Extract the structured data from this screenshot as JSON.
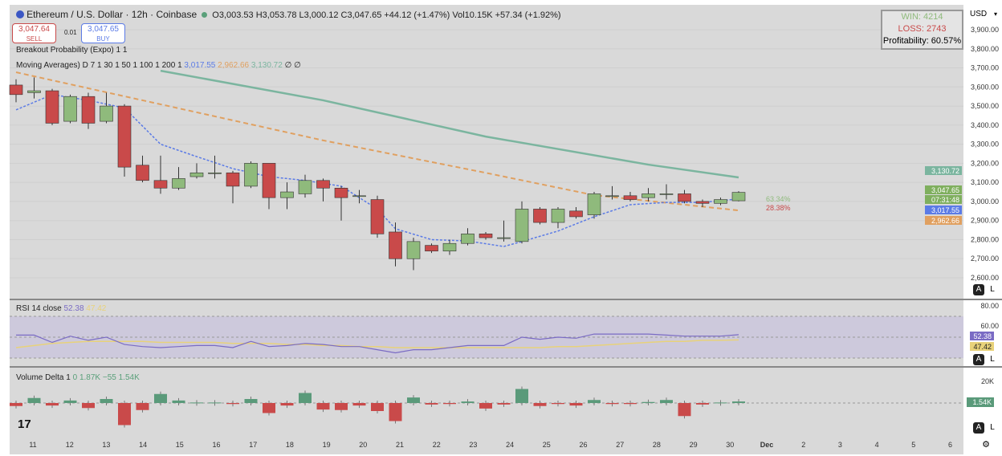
{
  "header": {
    "symbol_title": "Ethereum / U.S. Dollar · 12h · Coinbase",
    "open": "O3,003.53",
    "high": "H3,053.78",
    "low": "L3,000.12",
    "close": "C3,047.65",
    "change": "+44.12 (+1.47%)",
    "volume": "Vol10.15K",
    "vol_change": "+57.34 (+1.92%)"
  },
  "trade": {
    "sell_price": "3,047.64",
    "sell_label": "SELL",
    "spread": "0.01",
    "buy_price": "3,047.65",
    "buy_label": "BUY"
  },
  "indicators": {
    "breakout": "Breakout Probability (Expo) 1 1",
    "ma_label": "Moving Averages) D 7 1 30 1 50 1 100 1 200 1",
    "ma_v1": "3,017.55",
    "ma_v2": "2,962.66",
    "ma_v3": "3,130.72",
    "ma_tail": "∅ ∅"
  },
  "stats": {
    "win": "WIN: 4214",
    "loss": "LOSS: 2743",
    "profitability": "Profitability: 60.57%"
  },
  "breakout_probs": {
    "up": "63.34%",
    "down": "28.38%"
  },
  "currency": "USD",
  "price_axis": [
    "3,900.00",
    "3,800.00",
    "3,700.00",
    "3,600.00",
    "3,500.00",
    "3,400.00",
    "3,300.00",
    "3,200.00",
    "3,100.00",
    "3,000.00",
    "2,900.00",
    "2,800.00",
    "2,700.00",
    "2,600.00"
  ],
  "price_tags": {
    "ma100": "3,130.72",
    "last": "3,047.65",
    "countdown": "07:31:48",
    "ema7": "3,017.55",
    "ma30": "2,962.66"
  },
  "rsi": {
    "label": "RSI 14 close",
    "value": "52.38",
    "ma_value": "47.42",
    "axis": [
      "80.00",
      "60.00"
    ]
  },
  "volume_delta": {
    "label": "Volume Delta 1",
    "values_text": "0 1.87K −55 1.54K",
    "axis": "20K",
    "tag": "1.54K"
  },
  "date_axis": [
    "11",
    "12",
    "13",
    "14",
    "15",
    "16",
    "17",
    "18",
    "19",
    "20",
    "21",
    "22",
    "23",
    "24",
    "25",
    "26",
    "27",
    "28",
    "29",
    "30",
    "Dec",
    "2",
    "3",
    "4",
    "5",
    "6"
  ],
  "scale_buttons": {
    "auto": "A",
    "log": "L"
  },
  "colors": {
    "up": "#8fba7c",
    "down": "#c94a4a",
    "ma100": "#7bb59f",
    "ma30": "#e0a060",
    "ema7": "#5b7be6",
    "rsi": "#7a6bc4",
    "rsi_ma": "#e8d27a"
  },
  "chart_data": {
    "type": "candlestick",
    "candles": [
      [
        3610,
        3640,
        3520,
        3560
      ],
      [
        3570,
        3650,
        3540,
        3580
      ],
      [
        3580,
        3590,
        3400,
        3410
      ],
      [
        3420,
        3560,
        3410,
        3550
      ],
      [
        3550,
        3570,
        3380,
        3410
      ],
      [
        3420,
        3570,
        3410,
        3500
      ],
      [
        3500,
        3510,
        3130,
        3180
      ],
      [
        3190,
        3240,
        3100,
        3110
      ],
      [
        3110,
        3240,
        3040,
        3070
      ],
      [
        3070,
        3180,
        3060,
        3120
      ],
      [
        3130,
        3200,
        3120,
        3150
      ],
      [
        3150,
        3240,
        3120,
        3150
      ],
      [
        3150,
        3160,
        2990,
        3080
      ],
      [
        3080,
        3210,
        3070,
        3200
      ],
      [
        3200,
        3200,
        2960,
        3020
      ],
      [
        3020,
        3100,
        2960,
        3050
      ],
      [
        3040,
        3140,
        3020,
        3110
      ],
      [
        3110,
        3120,
        3000,
        3070
      ],
      [
        3070,
        3080,
        2900,
        3020
      ],
      [
        3030,
        3060,
        2990,
        3030
      ],
      [
        3010,
        3030,
        2810,
        2830
      ],
      [
        2840,
        2890,
        2660,
        2700
      ],
      [
        2700,
        2810,
        2640,
        2790
      ],
      [
        2770,
        2780,
        2730,
        2740
      ],
      [
        2740,
        2800,
        2720,
        2780
      ],
      [
        2780,
        2860,
        2770,
        2830
      ],
      [
        2830,
        2840,
        2800,
        2810
      ],
      [
        2810,
        2900,
        2790,
        2810
      ],
      [
        2790,
        3000,
        2780,
        2960
      ],
      [
        2960,
        2970,
        2880,
        2890
      ],
      [
        2890,
        2970,
        2860,
        2960
      ],
      [
        2950,
        2970,
        2910,
        2920
      ],
      [
        2930,
        3050,
        2910,
        3040
      ],
      [
        3030,
        3080,
        3010,
        3030
      ],
      [
        3030,
        3050,
        3000,
        3010
      ],
      [
        3020,
        3070,
        3000,
        3040
      ],
      [
        3040,
        3090,
        3010,
        3040
      ],
      [
        3040,
        3060,
        2990,
        3000
      ],
      [
        3000,
        3010,
        2970,
        2990
      ],
      [
        2990,
        3020,
        2980,
        3010
      ],
      [
        3003.53,
        3053.78,
        3000.12,
        3047.65
      ]
    ],
    "ma100": [
      [
        8,
        3685
      ],
      [
        17,
        3530
      ],
      [
        26,
        3340
      ],
      [
        35,
        3193
      ],
      [
        40,
        3126
      ]
    ],
    "ma30": [
      [
        0,
        3677
      ],
      [
        8,
        3509
      ],
      [
        17,
        3320
      ],
      [
        26,
        3150
      ],
      [
        32,
        3033
      ],
      [
        40,
        2953
      ]
    ],
    "ema7": [
      [
        0,
        3480
      ],
      [
        2,
        3560
      ],
      [
        4,
        3530
      ],
      [
        6,
        3490
      ],
      [
        8,
        3300
      ],
      [
        10,
        3235
      ],
      [
        12,
        3172
      ],
      [
        14,
        3130
      ],
      [
        16,
        3110
      ],
      [
        18,
        3080
      ],
      [
        20,
        2960
      ],
      [
        21,
        2857
      ],
      [
        23,
        2800
      ],
      [
        25,
        2793
      ],
      [
        27,
        2764
      ],
      [
        28,
        2790
      ],
      [
        30,
        2845
      ],
      [
        32,
        2920
      ],
      [
        34,
        2983
      ],
      [
        36,
        2995
      ],
      [
        38,
        2995
      ],
      [
        40,
        3013
      ]
    ],
    "ylim": [
      2600,
      3900
    ],
    "rsi": [
      52,
      52,
      45,
      51,
      47,
      50,
      43,
      41,
      40,
      41,
      42,
      42,
      40,
      46,
      41,
      42,
      44,
      43,
      41,
      41,
      38,
      35,
      38,
      38,
      40,
      42,
      42,
      42,
      50,
      48,
      50,
      49,
      53,
      53,
      53,
      53,
      52,
      51,
      51,
      51,
      52.38
    ],
    "rsi_ma": [
      40,
      42,
      44,
      45,
      46,
      46,
      46,
      46,
      45,
      45,
      45,
      45,
      44,
      44,
      44,
      43,
      43,
      42,
      42,
      41,
      41,
      40,
      40,
      40,
      40,
      40,
      40,
      40,
      40,
      40,
      41,
      41,
      42,
      43,
      44,
      45,
      46,
      46,
      47,
      47,
      47.42
    ],
    "volume_delta_k": [
      -3,
      5,
      -2.5,
      2.5,
      -5,
      4,
      -22,
      -7,
      9,
      2.5,
      0.5,
      0.5,
      -1,
      4,
      -10,
      -2.5,
      10,
      -6.5,
      -7,
      -2.5,
      -8,
      -18,
      5.5,
      -1.5,
      -1,
      1.5,
      -5.5,
      -1.5,
      14,
      -3,
      -1,
      -2.5,
      3,
      -1,
      -1,
      1,
      3,
      -13,
      -1.5,
      0.5,
      1.54
    ]
  }
}
